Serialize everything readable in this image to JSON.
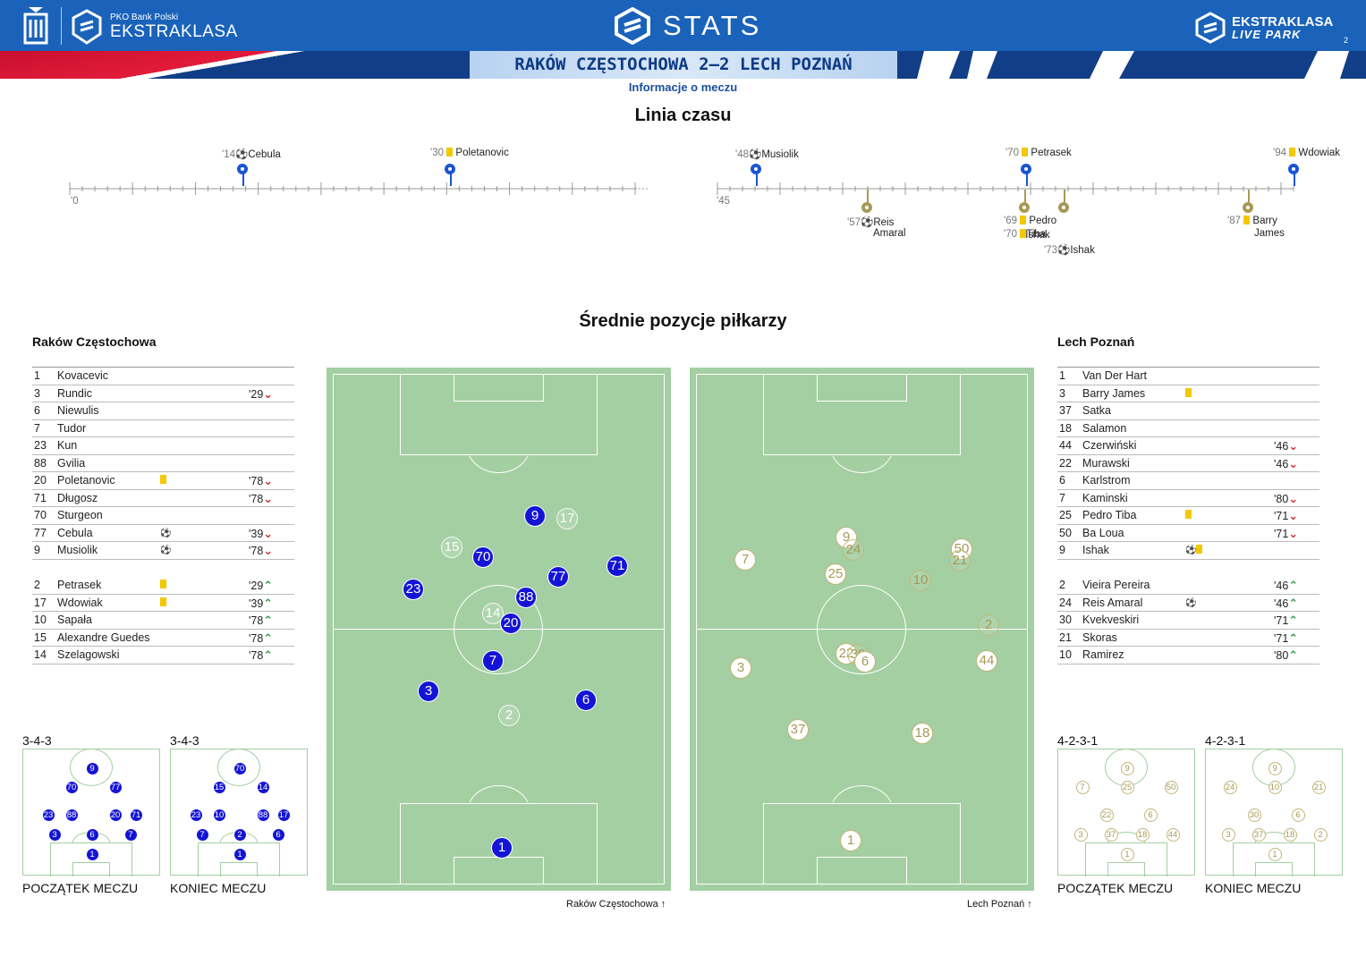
{
  "header": {
    "league_small": "PKO Bank Polski",
    "league": "EKSTRAKLASA",
    "app": "STATS",
    "right_logo_top": "EKSTRAKLASA",
    "right_logo_bottom": "LIVE PARK",
    "page_number": "2",
    "match": "RAKÓW CZĘSTOCHOWA 2–2 LECH POZNAŃ",
    "subtitle": "Informacje o meczu",
    "colors": {
      "blue": "#1a62ba",
      "dark": "#123e88",
      "red": "#c8102e"
    }
  },
  "timeline": {
    "title": "Linia czasu",
    "first_half_start": "'0",
    "second_half_start": "'45",
    "home_events": [
      {
        "minute": "'14",
        "type": "goal",
        "player": "Cebula"
      },
      {
        "minute": "'30",
        "type": "yellow",
        "player": "Poletanovic"
      },
      {
        "minute": "'48",
        "type": "goal",
        "player": "Musiolik"
      },
      {
        "minute": "'70",
        "type": "yellow",
        "player": "Petrasek"
      },
      {
        "minute": "'94",
        "type": "yellow",
        "player": "Wdowiak"
      }
    ],
    "away_events": [
      {
        "minute": "'57",
        "type": "goal",
        "player": "Reis",
        "player2": "Amaral"
      },
      {
        "minute": "'69",
        "type": "yellow",
        "player": "Pedro",
        "player2": ""
      },
      {
        "minute": "'70",
        "type": "yellow",
        "player": "Tiba"
      },
      {
        "minute": "'70",
        "type": "yellow",
        "player": "Ishak"
      },
      {
        "minute": "'73",
        "type": "goal",
        "player": "Ishak"
      },
      {
        "minute": "'87",
        "type": "yellow",
        "player": "Barry",
        "player2": "James"
      }
    ]
  },
  "positions": {
    "title": "Średnie pozycje piłkarzy",
    "home_caption": "Raków Częstochowa",
    "away_caption": "Lech Poznań",
    "home_players": [
      {
        "n": "9"
      },
      {
        "n": "17"
      },
      {
        "n": "15"
      },
      {
        "n": "70"
      },
      {
        "n": "77"
      },
      {
        "n": "71"
      },
      {
        "n": "23"
      },
      {
        "n": "88"
      },
      {
        "n": "14"
      },
      {
        "n": "20"
      },
      {
        "n": "7"
      },
      {
        "n": "3"
      },
      {
        "n": "6"
      },
      {
        "n": "2"
      },
      {
        "n": "1"
      }
    ],
    "away_players": [
      {
        "n": "9"
      },
      {
        "n": "24"
      },
      {
        "n": "50"
      },
      {
        "n": "21"
      },
      {
        "n": "7"
      },
      {
        "n": "25"
      },
      {
        "n": "10"
      },
      {
        "n": "2"
      },
      {
        "n": "22"
      },
      {
        "n": "30"
      },
      {
        "n": "6"
      },
      {
        "n": "3"
      },
      {
        "n": "44"
      },
      {
        "n": "37"
      },
      {
        "n": "18"
      },
      {
        "n": "1"
      }
    ]
  },
  "home": {
    "name": "Raków Częstochowa",
    "starters": [
      {
        "num": "1",
        "name": "Kovacevic",
        "icon": "",
        "min": "",
        "dir": ""
      },
      {
        "num": "3",
        "name": "Rundic",
        "icon": "",
        "min": "'29",
        "dir": "down"
      },
      {
        "num": "6",
        "name": "Niewulis",
        "icon": "",
        "min": "",
        "dir": ""
      },
      {
        "num": "7",
        "name": "Tudor",
        "icon": "",
        "min": "",
        "dir": ""
      },
      {
        "num": "23",
        "name": "Kun",
        "icon": "",
        "min": "",
        "dir": ""
      },
      {
        "num": "88",
        "name": "Gvilia",
        "icon": "",
        "min": "",
        "dir": ""
      },
      {
        "num": "20",
        "name": "Poletanovic",
        "icon": "yellow",
        "min": "'78",
        "dir": "down"
      },
      {
        "num": "71",
        "name": "Długosz",
        "icon": "",
        "min": "'78",
        "dir": "down"
      },
      {
        "num": "70",
        "name": "Sturgeon",
        "icon": "",
        "min": "",
        "dir": ""
      },
      {
        "num": "77",
        "name": "Cebula",
        "icon": "goal",
        "min": "'39",
        "dir": "down"
      },
      {
        "num": "9",
        "name": "Musiolik",
        "icon": "goal",
        "min": "'78",
        "dir": "down"
      }
    ],
    "subs": [
      {
        "num": "2",
        "name": "Petrasek",
        "icon": "yellow",
        "min": "'29",
        "dir": "up"
      },
      {
        "num": "17",
        "name": "Wdowiak",
        "icon": "yellow",
        "min": "'39",
        "dir": "up"
      },
      {
        "num": "10",
        "name": "Sapała",
        "icon": "",
        "min": "'78",
        "dir": "up"
      },
      {
        "num": "15",
        "name": "Alexandre Guedes",
        "icon": "",
        "min": "'78",
        "dir": "up"
      },
      {
        "num": "14",
        "name": "Szelagowski",
        "icon": "",
        "min": "'78",
        "dir": "up"
      }
    ],
    "formation_start": "3-4-3",
    "formation_end": "3-4-3",
    "start_caption": "POCZĄTEK MECZU",
    "end_caption": "KONIEC MECZU",
    "start_players": [
      "9",
      "70",
      "77",
      "23",
      "88",
      "20",
      "71",
      "3",
      "6",
      "7",
      "1"
    ],
    "end_players": [
      "70",
      "15",
      "14",
      "23",
      "10",
      "88",
      "17",
      "7",
      "2",
      "6",
      "1"
    ]
  },
  "away": {
    "name": "Lech Poznań",
    "starters": [
      {
        "num": "1",
        "name": "Van Der Hart",
        "icon": "",
        "min": "",
        "dir": ""
      },
      {
        "num": "3",
        "name": "Barry James",
        "icon": "yellow",
        "min": "",
        "dir": ""
      },
      {
        "num": "37",
        "name": "Satka",
        "icon": "",
        "min": "",
        "dir": ""
      },
      {
        "num": "18",
        "name": "Salamon",
        "icon": "",
        "min": "",
        "dir": ""
      },
      {
        "num": "44",
        "name": "Czerwiński",
        "icon": "",
        "min": "'46",
        "dir": "down"
      },
      {
        "num": "22",
        "name": "Murawski",
        "icon": "",
        "min": "'46",
        "dir": "down"
      },
      {
        "num": "6",
        "name": "Karlstrom",
        "icon": "",
        "min": "",
        "dir": ""
      },
      {
        "num": "7",
        "name": "Kaminski",
        "icon": "",
        "min": "'80",
        "dir": "down"
      },
      {
        "num": "25",
        "name": "Pedro Tiba",
        "icon": "yellow",
        "min": "'71",
        "dir": "down"
      },
      {
        "num": "50",
        "name": "Ba Loua",
        "icon": "",
        "min": "'71",
        "dir": "down"
      },
      {
        "num": "9",
        "name": "Ishak",
        "icon": "goal+yellow",
        "min": "",
        "dir": ""
      }
    ],
    "subs": [
      {
        "num": "2",
        "name": "Vieira Pereira",
        "icon": "",
        "min": "'46",
        "dir": "up"
      },
      {
        "num": "24",
        "name": "Reis Amaral",
        "icon": "goal",
        "min": "'46",
        "dir": "up"
      },
      {
        "num": "30",
        "name": "Kvekveskiri",
        "icon": "",
        "min": "'71",
        "dir": "up"
      },
      {
        "num": "21",
        "name": "Skoras",
        "icon": "",
        "min": "'71",
        "dir": "up"
      },
      {
        "num": "10",
        "name": "Ramirez",
        "icon": "",
        "min": "'80",
        "dir": "up"
      }
    ],
    "formation_start": "4-2-3-1",
    "formation_end": "4-2-3-1",
    "start_caption": "POCZĄTEK MECZU",
    "end_caption": "KONIEC MECZU",
    "start_players": [
      "9",
      "7",
      "25",
      "50",
      "22",
      "6",
      "3",
      "37",
      "18",
      "44",
      "1"
    ],
    "end_players": [
      "9",
      "24",
      "10",
      "21",
      "30",
      "6",
      "3",
      "37",
      "18",
      "2",
      "1"
    ]
  }
}
